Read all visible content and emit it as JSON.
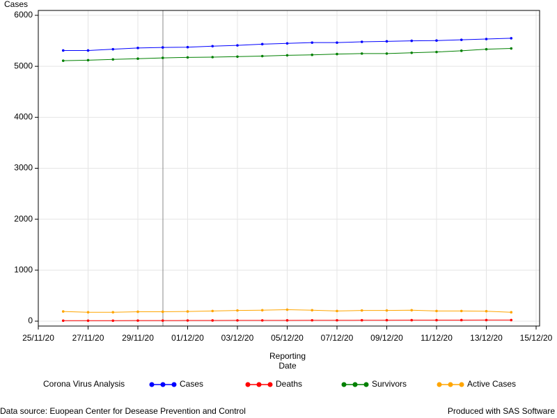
{
  "chart_data": {
    "type": "line",
    "y_label": "Cases",
    "x_label": [
      "Reporting",
      "Date"
    ],
    "legend_title": "Corona Virus Analysis",
    "legend": "bottom",
    "grid": true,
    "footnotes": [
      "Data source: Euopean Center for Desease Prevention and Control",
      "Produced with SAS Software"
    ],
    "x": [
      "2020-11-26",
      "2020-11-27",
      "2020-11-28",
      "2020-11-29",
      "2020-11-30",
      "2020-12-01",
      "2020-12-02",
      "2020-12-03",
      "2020-12-04",
      "2020-12-05",
      "2020-12-06",
      "2020-12-07",
      "2020-12-08",
      "2020-12-09",
      "2020-12-10",
      "2020-12-11",
      "2020-12-12",
      "2020-12-13",
      "2020-12-14"
    ],
    "xlim": [
      "2020-11-25",
      "2020-12-15"
    ],
    "xticks": [
      {
        "value": "2020-11-25",
        "label": "25/11/20"
      },
      {
        "value": "2020-11-27",
        "label": "27/11/20"
      },
      {
        "value": "2020-11-29",
        "label": "29/11/20"
      },
      {
        "value": "2020-12-01",
        "label": "01/12/20"
      },
      {
        "value": "2020-12-03",
        "label": "03/12/20"
      },
      {
        "value": "2020-12-05",
        "label": "05/12/20"
      },
      {
        "value": "2020-12-07",
        "label": "07/12/20"
      },
      {
        "value": "2020-12-09",
        "label": "09/12/20"
      },
      {
        "value": "2020-12-11",
        "label": "11/12/20"
      },
      {
        "value": "2020-12-13",
        "label": "13/12/20"
      },
      {
        "value": "2020-12-15",
        "label": "15/12/20"
      }
    ],
    "ylim": [
      0,
      6000
    ],
    "yticks": [
      0,
      1000,
      2000,
      3000,
      4000,
      5000,
      6000
    ],
    "series": [
      {
        "name": "Cases",
        "color": "#0000ff",
        "values": [
          5310,
          5310,
          5335,
          5360,
          5370,
          5375,
          5395,
          5410,
          5435,
          5450,
          5465,
          5465,
          5480,
          5490,
          5500,
          5505,
          5520,
          5535,
          5550
        ]
      },
      {
        "name": "Deaths",
        "color": "#ff0000",
        "values": [
          10,
          10,
          10,
          12,
          12,
          13,
          14,
          15,
          15,
          16,
          17,
          17,
          18,
          19,
          20,
          20,
          21,
          22,
          22
        ]
      },
      {
        "name": "Survivors",
        "color": "#008000",
        "values": [
          5110,
          5120,
          5135,
          5150,
          5165,
          5175,
          5180,
          5190,
          5200,
          5215,
          5225,
          5240,
          5250,
          5250,
          5265,
          5280,
          5305,
          5335,
          5350
        ]
      },
      {
        "name": "Active Cases",
        "color": "#ffa500",
        "values": [
          190,
          175,
          175,
          185,
          185,
          190,
          200,
          210,
          215,
          225,
          215,
          200,
          210,
          210,
          215,
          200,
          200,
          195,
          175
        ]
      }
    ]
  }
}
